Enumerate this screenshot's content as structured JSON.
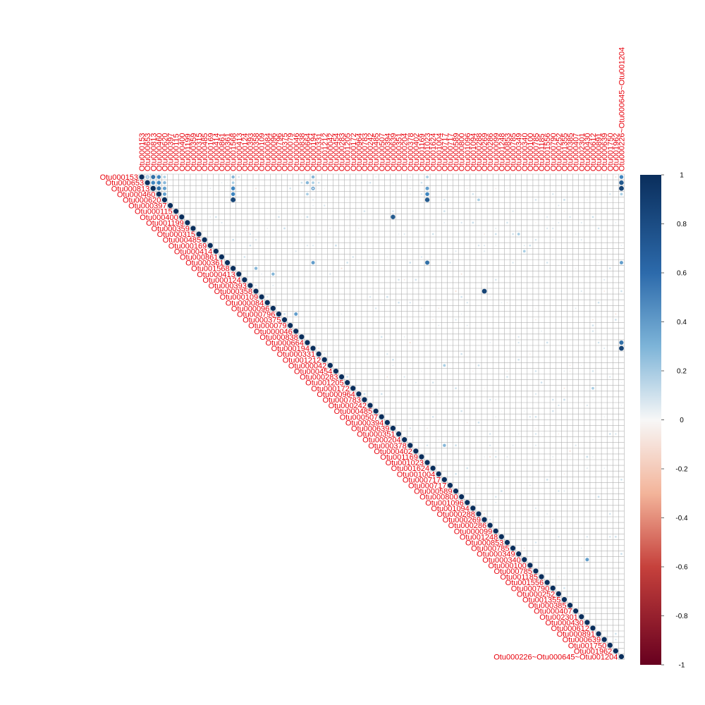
{
  "chart_data": {
    "type": "heatmap",
    "style": "correlation-plot-upper-triangle-circles",
    "title": "",
    "variables": [
      "Otu000153",
      "Otu000653",
      "Otu000813",
      "Otu000460",
      "Otu000620",
      "Otu000397",
      "Otu000115",
      "Otu000400",
      "Otu001199",
      "Otu000359",
      "Otu000315",
      "Otu000485",
      "Otu000169",
      "Otu000414",
      "Otu000861",
      "Otu000361",
      "Otu001568",
      "Otu000413",
      "Otu000124",
      "Otu000393",
      "Otu000358",
      "Otu000109",
      "Otu000084",
      "Otu000096",
      "Otu000796",
      "Otu000375",
      "Otu000079",
      "Otu000046",
      "Otu000838",
      "Otu000664",
      "Otu000194",
      "Otu000331",
      "Otu001212",
      "Otu000042",
      "Otu000454",
      "Otu000283",
      "Otu001205",
      "Otu000172",
      "Otu000964",
      "Otu000783",
      "Otu000242",
      "Otu000485",
      "Otu000507",
      "Otu000394",
      "Otu000639",
      "Otu000351",
      "Otu000204",
      "Otu000378",
      "Otu000402",
      "Otu001169",
      "Otu001023",
      "Otu001624",
      "Otu001004",
      "Otu000717",
      "Otu000717",
      "Otu000589",
      "Otu000800",
      "Otu001096",
      "Otu001094",
      "Otu000288",
      "Otu000269",
      "Otu000286",
      "Otu000099",
      "Otu001248",
      "Otu000853",
      "Otu000785",
      "Otu000349",
      "Otu000340",
      "Otu000100",
      "Otu000785",
      "Otu001185",
      "Otu001556",
      "Otu000790",
      "Otu000252",
      "Otu001355",
      "Otu000385",
      "Otu000407",
      "Otu002301",
      "Otu000430",
      "Otu000612",
      "Otu000891",
      "Otu000639",
      "Otu001750",
      "Otu001962",
      "Otu000226~Otu000645~Otu001204"
    ],
    "notable_correlations": [
      {
        "row": "Otu000153",
        "col": "Otu000653",
        "value": 0.5
      },
      {
        "row": "Otu000153",
        "col": "Otu000813",
        "value": 0.7
      },
      {
        "row": "Otu000153",
        "col": "Otu000460",
        "value": 0.6
      },
      {
        "row": "Otu000153",
        "col": "Otu000620",
        "value": 0.3
      },
      {
        "row": "Otu000153",
        "col": "Otu001568",
        "value": 0.4
      },
      {
        "row": "Otu000153",
        "col": "Otu000194",
        "value": 0.4
      },
      {
        "row": "Otu000153",
        "col": "Otu001023",
        "value": 0.3
      },
      {
        "row": "Otu000153",
        "col": "Otu000226~Otu000645~Otu001204",
        "value": 0.6
      },
      {
        "row": "Otu000653",
        "col": "Otu000813",
        "value": 0.6
      },
      {
        "row": "Otu000653",
        "col": "Otu000460",
        "value": 0.6
      },
      {
        "row": "Otu000653",
        "col": "Otu000620",
        "value": 0.4
      },
      {
        "row": "Otu000653",
        "col": "Otu001568",
        "value": 0.3
      },
      {
        "row": "Otu000653",
        "col": "Otu000664",
        "value": 0.4
      },
      {
        "row": "Otu000653",
        "col": "Otu000194",
        "value": 0.3
      },
      {
        "row": "Otu000653",
        "col": "Otu000226~Otu000645~Otu001204",
        "value": 0.8
      },
      {
        "row": "Otu000813",
        "col": "Otu000460",
        "value": 0.7
      },
      {
        "row": "Otu000813",
        "col": "Otu000620",
        "value": 0.5
      },
      {
        "row": "Otu000813",
        "col": "Otu001568",
        "value": 0.6
      },
      {
        "row": "Otu000813",
        "col": "Otu000194",
        "value": 0.5
      },
      {
        "row": "Otu000813",
        "col": "Otu001023",
        "value": 0.5
      },
      {
        "row": "Otu000813",
        "col": "Otu000226~Otu000645~Otu001204",
        "value": 0.9
      },
      {
        "row": "Otu000460",
        "col": "Otu000620",
        "value": 0.5
      },
      {
        "row": "Otu000460",
        "col": "Otu001568",
        "value": 0.6
      },
      {
        "row": "Otu000460",
        "col": "Otu000664",
        "value": 0.3
      },
      {
        "row": "Otu000460",
        "col": "Otu001023",
        "value": 0.6
      },
      {
        "row": "Otu000460",
        "col": "Otu000226~Otu000645~Otu001204",
        "value": 0.3
      },
      {
        "row": "Otu000620",
        "col": "Otu001568",
        "value": 0.9
      },
      {
        "row": "Otu000620",
        "col": "Otu001023",
        "value": 0.8
      },
      {
        "row": "Otu000620",
        "col": "Otu000288",
        "value": 0.3
      },
      {
        "row": "Otu000400",
        "col": "Otu000639",
        "value": 0.8
      },
      {
        "row": "Otu000315",
        "col": "Otu000349",
        "value": 0.3
      },
      {
        "row": "Otu000414",
        "col": "Otu000340",
        "value": 0.3
      },
      {
        "row": "Otu000361",
        "col": "Otu000194",
        "value": 0.5
      },
      {
        "row": "Otu000361",
        "col": "Otu001023",
        "value": 0.7
      },
      {
        "row": "Otu000361",
        "col": "Otu000226~Otu000645~Otu001204",
        "value": 0.5
      },
      {
        "row": "Otu001568",
        "col": "Otu000358",
        "value": 0.4
      },
      {
        "row": "Otu000413",
        "col": "Otu000096",
        "value": 0.4
      },
      {
        "row": "Otu000358",
        "col": "Otu000269",
        "value": 0.9
      },
      {
        "row": "Otu000796",
        "col": "Otu000046",
        "value": 0.5
      },
      {
        "row": "Otu000664",
        "col": "Otu000226~Otu000645~Otu001204",
        "value": 0.7
      },
      {
        "row": "Otu000194",
        "col": "Otu000226~Otu000645~Otu001204",
        "value": 0.9
      },
      {
        "row": "Otu000042",
        "col": "Otu000717",
        "value": 0.3
      },
      {
        "row": "Otu000172",
        "col": "Otu000612",
        "value": 0.3
      },
      {
        "row": "Otu000378",
        "col": "Otu000717",
        "value": 0.4
      },
      {
        "row": "Otu000340",
        "col": "Otu000430",
        "value": 0.5
      }
    ],
    "colorbar": {
      "ticks": [
        "1",
        "0.8",
        "0.6",
        "0.4",
        "0.2",
        "0",
        "-0.2",
        "-0.4",
        "-0.6",
        "-0.8",
        "-1"
      ],
      "range": [
        -1,
        1
      ],
      "colors": {
        "high": "#0a2e5c",
        "mid_high": "#4d90c4",
        "neutral": "#f7f7f7",
        "mid_low": "#e6866a",
        "low": "#67001f"
      }
    },
    "label_color": "#e8000b",
    "grid": true
  }
}
